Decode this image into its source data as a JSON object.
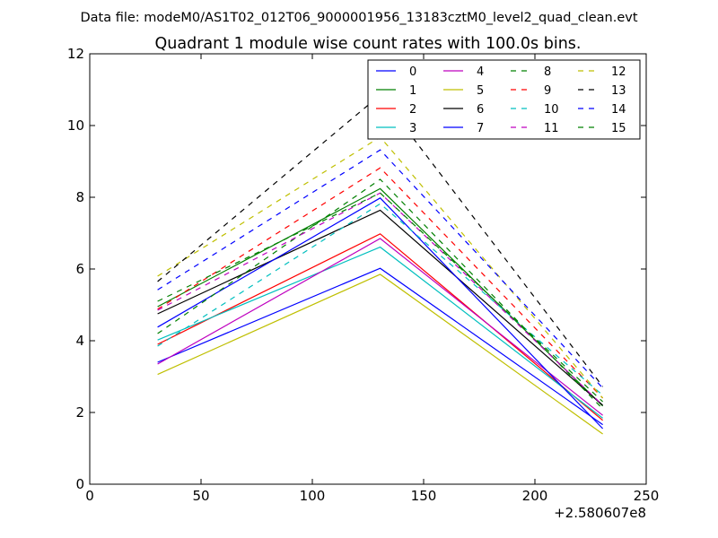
{
  "suptitle": "Data file: modeM0/AS1T02_012T06_9000001956_13183cztM0_level2_quad_clean.evt",
  "chart_data": {
    "type": "line",
    "title": "Quadrant 1 module wise count rates with 100.0s bins.",
    "xlabel": "",
    "ylabel": "",
    "xlim": [
      0,
      250
    ],
    "ylim": [
      0,
      12
    ],
    "x_offset_label": "+2.580607e8",
    "grid": false,
    "legend_position": "top-right",
    "x": [
      30.5,
      130.5,
      230.5
    ],
    "xticks": [
      0,
      50,
      100,
      150,
      200,
      250
    ],
    "xtick_labels": [
      "0",
      "50",
      "100",
      "150",
      "200",
      "250"
    ],
    "yticks": [
      0,
      2,
      4,
      6,
      8,
      10,
      12
    ],
    "ytick_labels": [
      "0",
      "2",
      "4",
      "6",
      "8",
      "10",
      "12"
    ],
    "series": [
      {
        "name": "0",
        "color": "#0000ff",
        "dashed": false,
        "values": [
          3.4,
          6.02,
          1.66
        ]
      },
      {
        "name": "1",
        "color": "#008000",
        "dashed": false,
        "values": [
          4.95,
          8.24,
          2.18
        ]
      },
      {
        "name": "2",
        "color": "#ff0000",
        "dashed": false,
        "values": [
          3.9,
          6.98,
          1.78
        ]
      },
      {
        "name": "3",
        "color": "#00bfbf",
        "dashed": false,
        "values": [
          4.02,
          6.61,
          1.84
        ]
      },
      {
        "name": "4",
        "color": "#bf00bf",
        "dashed": false,
        "values": [
          3.35,
          6.85,
          1.92
        ]
      },
      {
        "name": "5",
        "color": "#bfbf00",
        "dashed": false,
        "values": [
          3.06,
          5.85,
          1.4
        ]
      },
      {
        "name": "6",
        "color": "#000000",
        "dashed": false,
        "values": [
          4.75,
          7.64,
          2.2
        ]
      },
      {
        "name": "7",
        "color": "#0000ff",
        "dashed": false,
        "values": [
          4.38,
          7.98,
          1.55
        ]
      },
      {
        "name": "8",
        "color": "#008000",
        "dashed": true,
        "values": [
          4.2,
          8.5,
          2.1
        ]
      },
      {
        "name": "9",
        "color": "#ff0000",
        "dashed": true,
        "values": [
          4.88,
          8.82,
          2.4
        ]
      },
      {
        "name": "10",
        "color": "#00bfbf",
        "dashed": true,
        "values": [
          3.85,
          7.82,
          2.48
        ]
      },
      {
        "name": "11",
        "color": "#bf00bf",
        "dashed": true,
        "values": [
          4.85,
          8.12,
          2.2
        ]
      },
      {
        "name": "12",
        "color": "#bfbf00",
        "dashed": true,
        "values": [
          5.8,
          9.68,
          2.4
        ]
      },
      {
        "name": "13",
        "color": "#000000",
        "dashed": true,
        "values": [
          5.65,
          10.85,
          2.72
        ]
      },
      {
        "name": "14",
        "color": "#0000ff",
        "dashed": true,
        "values": [
          5.42,
          9.32,
          2.68
        ]
      },
      {
        "name": "15",
        "color": "#008000",
        "dashed": true,
        "values": [
          5.1,
          8.12,
          2.3
        ]
      }
    ]
  }
}
